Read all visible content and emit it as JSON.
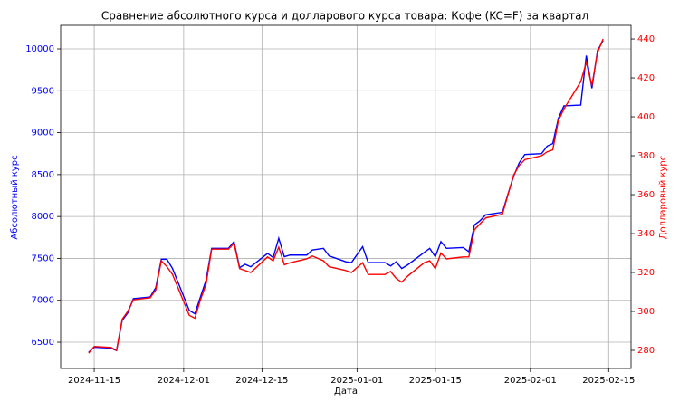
{
  "chart_data": {
    "type": "line",
    "title": "Сравнение абсолютного курса и долларового курса товара: Кофе (KC=F) за квартал",
    "x_label": "Дата",
    "y_label": "Абсолютный курс",
    "y2_label": "Долларовый курс",
    "x": [
      "2024-11-14",
      "2024-11-15",
      "2024-11-18",
      "2024-11-19",
      "2024-11-20",
      "2024-11-21",
      "2024-11-22",
      "2024-11-25",
      "2024-11-26",
      "2024-11-27",
      "2024-11-28",
      "2024-11-29",
      "2024-12-02",
      "2024-12-03",
      "2024-12-04",
      "2024-12-05",
      "2024-12-06",
      "2024-12-09",
      "2024-12-10",
      "2024-12-11",
      "2024-12-12",
      "2024-12-13",
      "2024-12-16",
      "2024-12-17",
      "2024-12-18",
      "2024-12-19",
      "2024-12-20",
      "2024-12-23",
      "2024-12-24",
      "2024-12-26",
      "2024-12-27",
      "2024-12-30",
      "2024-12-31",
      "2025-01-02",
      "2025-01-03",
      "2025-01-06",
      "2025-01-07",
      "2025-01-08",
      "2025-01-09",
      "2025-01-10",
      "2025-01-13",
      "2025-01-14",
      "2025-01-15",
      "2025-01-16",
      "2025-01-17",
      "2025-01-20",
      "2025-01-21",
      "2025-01-22",
      "2025-01-23",
      "2025-01-24",
      "2025-01-27",
      "2025-01-28",
      "2025-01-29",
      "2025-01-30",
      "2025-01-31",
      "2025-02-03",
      "2025-02-04",
      "2025-02-05",
      "2025-02-06",
      "2025-02-07",
      "2025-02-10",
      "2025-02-11",
      "2025-02-12",
      "2025-02-13",
      "2025-02-14"
    ],
    "series": [
      {
        "name": "Абсолютный курс",
        "color": "#0000ff",
        "axis": "y",
        "values": [
          6380,
          6440,
          6430,
          6400,
          6760,
          6850,
          7020,
          7040,
          7150,
          7490,
          7490,
          7380,
          6880,
          6840,
          7040,
          7240,
          7620,
          7620,
          7700,
          7390,
          7430,
          7400,
          7560,
          7510,
          7740,
          7520,
          7540,
          7540,
          7600,
          7620,
          7530,
          7460,
          7450,
          7640,
          7450,
          7450,
          7410,
          7460,
          7380,
          7420,
          7570,
          7620,
          7520,
          7700,
          7620,
          7630,
          7580,
          7900,
          7950,
          8020,
          8050,
          8270,
          8480,
          8640,
          8740,
          8750,
          8840,
          8870,
          9170,
          9320,
          9330,
          9920,
          9530,
          9980,
          10100
        ]
      },
      {
        "name": "Долларовый курс",
        "color": "#ff0000",
        "axis": "y2",
        "values": [
          278.5,
          282,
          281.5,
          280,
          296,
          300,
          306,
          307,
          311,
          326,
          323,
          319,
          298,
          296.5,
          306,
          314,
          332,
          332,
          335,
          322,
          321,
          320,
          328,
          326,
          333,
          324,
          325,
          327,
          328.5,
          326,
          323,
          321,
          320,
          325,
          319,
          319,
          320.5,
          317,
          315,
          318,
          325,
          326,
          322,
          330,
          327,
          328,
          328,
          342,
          345,
          348,
          350,
          360,
          370,
          375,
          378,
          380,
          382,
          383,
          398,
          404,
          418,
          428,
          416,
          433,
          440
        ]
      }
    ],
    "xlim": [
      "2024-11-09",
      "2025-02-19"
    ],
    "xticks": [
      "2024-11-15",
      "2024-12-01",
      "2024-12-15",
      "2025-01-01",
      "2025-01-15",
      "2025-02-01",
      "2025-02-15"
    ],
    "ylim": [
      6187,
      10281
    ],
    "yticks": [
      6500,
      7000,
      7500,
      8000,
      8500,
      9000,
      9500,
      10000
    ],
    "y2lim": [
      270.7,
      447
    ],
    "y2ticks": [
      280,
      300,
      320,
      340,
      360,
      380,
      400,
      420,
      440
    ],
    "grid": true
  }
}
